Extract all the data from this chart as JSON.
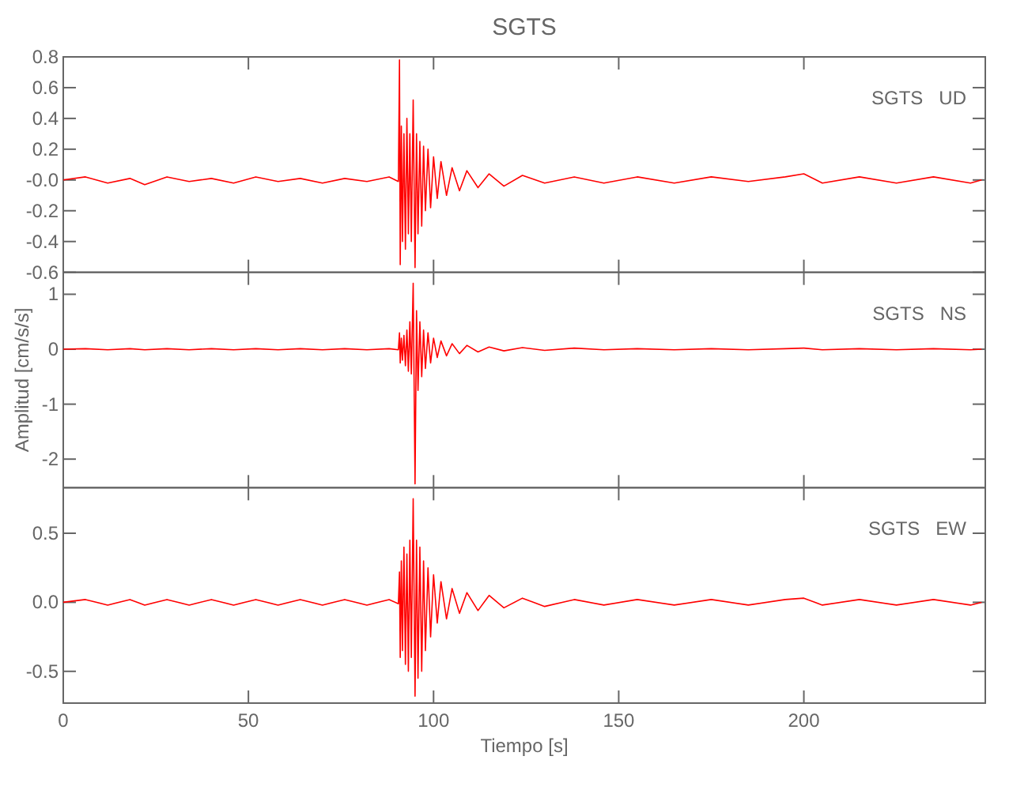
{
  "chart_data": [
    {
      "type": "line",
      "title": "SGTS",
      "annotations": [
        "SGTS   UD"
      ],
      "tick_labels": "y",
      "xlim": [
        0,
        249
      ],
      "xticks": [
        0,
        50,
        100,
        150,
        200
      ],
      "ylim": [
        -0.6,
        0.8
      ],
      "yticks": [
        0.8,
        0.6,
        0.4,
        0.2,
        {
          "value": 0,
          "label": "-0.0"
        },
        -0.2,
        -0.4,
        -0.6
      ],
      "x": [
        0,
        6,
        12,
        18,
        22,
        28,
        34,
        40,
        46,
        52,
        58,
        64,
        70,
        76,
        82,
        88,
        90.5,
        90.8,
        91.0,
        91.3,
        91.6,
        92.0,
        92.4,
        92.8,
        93.2,
        93.6,
        94.0,
        94.5,
        95.0,
        95.4,
        95.8,
        96.3,
        96.8,
        97.3,
        97.8,
        98.5,
        99.2,
        100,
        101,
        102,
        103.5,
        105,
        107,
        109,
        112,
        115,
        119,
        124,
        130,
        138,
        146,
        155,
        165,
        175,
        185,
        195,
        200,
        205,
        215,
        225,
        235,
        245,
        248
      ],
      "series": [
        {
          "color": "#ff0000",
          "values": [
            0.0,
            0.02,
            -0.02,
            0.01,
            -0.03,
            0.02,
            -0.01,
            0.01,
            -0.02,
            0.02,
            -0.01,
            0.01,
            -0.02,
            0.01,
            -0.01,
            0.02,
            -0.01,
            0.78,
            -0.55,
            0.35,
            -0.4,
            0.3,
            -0.45,
            0.4,
            -0.35,
            0.3,
            -0.4,
            0.52,
            -0.57,
            0.3,
            -0.35,
            0.25,
            -0.3,
            0.22,
            -0.2,
            0.2,
            -0.18,
            0.15,
            -0.12,
            0.12,
            -0.1,
            0.08,
            -0.07,
            0.06,
            -0.05,
            0.04,
            -0.04,
            0.03,
            -0.02,
            0.02,
            -0.02,
            0.02,
            -0.02,
            0.02,
            -0.01,
            0.02,
            0.04,
            -0.02,
            0.02,
            -0.02,
            0.02,
            -0.02,
            0.0
          ]
        }
      ]
    },
    {
      "type": "line",
      "ylabel": "Amplitud [cm/s/s]",
      "annotations": [
        "SGTS   NS"
      ],
      "tick_labels": "y",
      "xlim": [
        0,
        249
      ],
      "xticks": [
        0,
        50,
        100,
        150,
        200
      ],
      "ylim": [
        -2.52,
        1.4
      ],
      "yticks": [
        1,
        0,
        -1,
        -2
      ],
      "x": [
        0,
        6,
        12,
        18,
        22,
        28,
        34,
        40,
        46,
        52,
        58,
        64,
        70,
        76,
        82,
        88,
        90.5,
        90.8,
        91.0,
        91.3,
        91.6,
        92.0,
        92.4,
        92.8,
        93.2,
        93.6,
        94.0,
        94.5,
        95.0,
        95.4,
        95.8,
        96.3,
        96.8,
        97.3,
        97.8,
        98.5,
        99.2,
        100,
        101,
        102,
        103.5,
        105,
        107,
        109,
        112,
        115,
        119,
        124,
        130,
        138,
        146,
        155,
        165,
        175,
        185,
        195,
        200,
        205,
        215,
        225,
        235,
        245,
        248
      ],
      "series": [
        {
          "color": "#ff0000",
          "values": [
            0,
            0.01,
            -0.01,
            0.01,
            -0.01,
            0.01,
            -0.01,
            0.01,
            -0.01,
            0.01,
            -0.01,
            0.01,
            -0.01,
            0.01,
            -0.01,
            0.01,
            -0.01,
            0.3,
            -0.25,
            0.2,
            -0.2,
            0.25,
            -0.3,
            0.35,
            -0.4,
            0.5,
            -0.45,
            1.2,
            -2.45,
            0.7,
            -0.75,
            0.5,
            -0.5,
            0.35,
            -0.35,
            0.3,
            -0.25,
            0.2,
            -0.15,
            0.15,
            -0.12,
            0.1,
            -0.08,
            0.07,
            -0.05,
            0.04,
            -0.03,
            0.03,
            -0.02,
            0.02,
            -0.01,
            0.01,
            -0.01,
            0.01,
            -0.01,
            0.01,
            0.02,
            -0.01,
            0.01,
            -0.01,
            0.01,
            -0.01,
            0.0
          ]
        }
      ]
    },
    {
      "type": "line",
      "xlabel": "Tiempo [s]",
      "annotations": [
        "SGTS   EW"
      ],
      "xlim": [
        0,
        249
      ],
      "xticks": [
        0,
        50,
        100,
        150,
        200
      ],
      "ylim": [
        -0.73,
        0.83
      ],
      "yticks": [
        {
          "value": 0.5,
          "label": "0.5"
        },
        {
          "value": 0,
          "label": "0.0"
        },
        {
          "value": -0.5,
          "label": "-0.5"
        }
      ],
      "x": [
        0,
        6,
        12,
        18,
        22,
        28,
        34,
        40,
        46,
        52,
        58,
        64,
        70,
        76,
        82,
        88,
        90.5,
        90.8,
        91.0,
        91.3,
        91.6,
        92.0,
        92.4,
        92.8,
        93.2,
        93.6,
        94.0,
        94.5,
        95.0,
        95.4,
        95.8,
        96.3,
        96.8,
        97.3,
        97.8,
        98.5,
        99.2,
        100,
        101,
        102,
        103.5,
        105,
        107,
        109,
        112,
        115,
        119,
        124,
        130,
        138,
        146,
        155,
        165,
        175,
        185,
        195,
        200,
        205,
        215,
        225,
        235,
        245,
        248
      ],
      "series": [
        {
          "color": "#ff0000",
          "values": [
            0,
            0.02,
            -0.02,
            0.02,
            -0.02,
            0.02,
            -0.02,
            0.02,
            -0.02,
            0.02,
            -0.02,
            0.02,
            -0.02,
            0.02,
            -0.02,
            0.02,
            -0.01,
            0.22,
            -0.4,
            0.3,
            -0.35,
            0.4,
            -0.45,
            0.35,
            -0.5,
            0.45,
            -0.4,
            0.75,
            -0.68,
            0.45,
            -0.55,
            0.4,
            -0.5,
            0.3,
            -0.35,
            0.25,
            -0.25,
            0.2,
            -0.15,
            0.15,
            -0.12,
            0.1,
            -0.08,
            0.07,
            -0.06,
            0.05,
            -0.04,
            0.03,
            -0.03,
            0.02,
            -0.02,
            0.02,
            -0.02,
            0.02,
            -0.02,
            0.02,
            0.03,
            -0.02,
            0.02,
            -0.02,
            0.02,
            -0.02,
            0.0
          ]
        }
      ]
    }
  ]
}
